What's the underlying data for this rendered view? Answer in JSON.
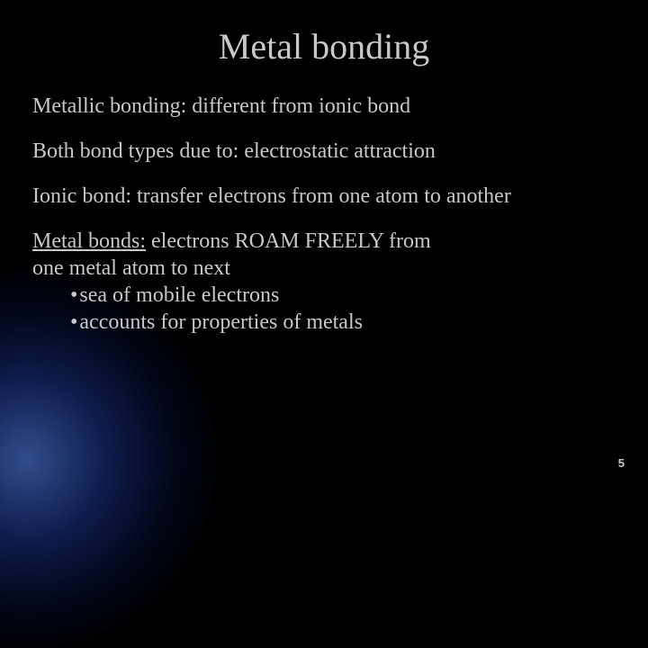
{
  "colors": {
    "background": "#000000",
    "text": "#c8c8c8",
    "glow_center": "rgba(90,140,255,0.55)",
    "glow_mid": "rgba(40,80,220,0.35)",
    "glow_outer": "rgba(10,30,120,0.2)"
  },
  "typography": {
    "title_fontsize": 40,
    "body_fontsize": 24,
    "pagenum_fontsize": 13,
    "font_family": "Times New Roman"
  },
  "title": "Metal bonding",
  "lines": {
    "l1": "Metallic bonding: different from ionic bond",
    "l2": "Both bond types due to: electrostatic attraction",
    "l3": "Ionic bond:  transfer electrons from one atom to another"
  },
  "metal_bonds": {
    "label": "Metal bonds:",
    "rest1": " electrons ROAM FREELY from",
    "rest2": "one metal atom to next",
    "bullet1": "sea of mobile electrons",
    "bullet2": "accounts for properties of metals"
  },
  "page_number": "5"
}
